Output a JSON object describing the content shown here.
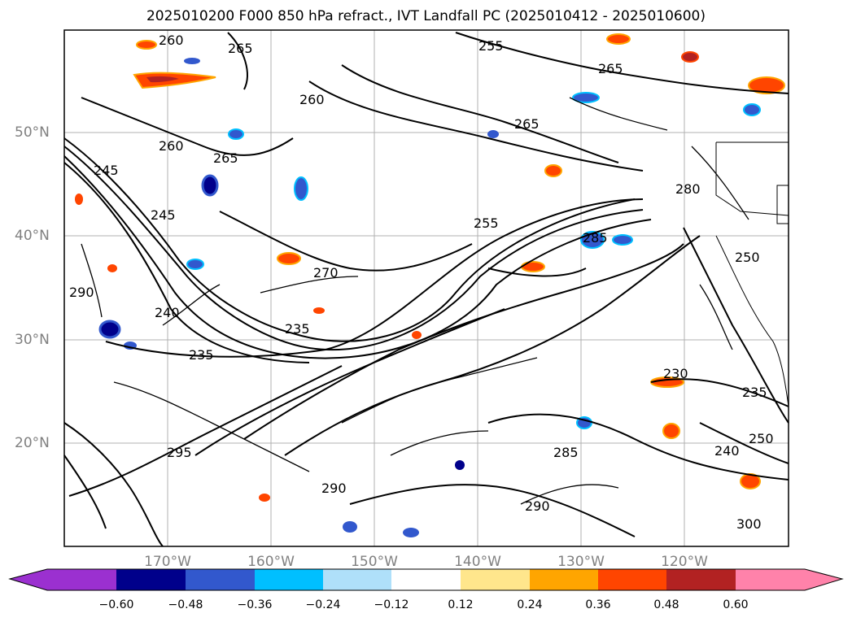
{
  "title": "2025010200 F000 850 hPa refract., IVT Landfall PC (2025010412 - 2025010600)",
  "lat_labels": [
    "50°N",
    "40°N",
    "30°N",
    "20°N"
  ],
  "lon_labels": [
    "170°W",
    "160°W",
    "150°W",
    "140°W",
    "130°W",
    "120°W"
  ],
  "contour_labels": [
    "260",
    "265",
    "255",
    "265",
    "265",
    "260",
    "265",
    "260",
    "245",
    "245",
    "255",
    "270",
    "280",
    "285",
    "250",
    "290",
    "240",
    "235",
    "235",
    "230",
    "235",
    "240",
    "250",
    "290",
    "290",
    "285",
    "295",
    "300"
  ],
  "colorbar": {
    "tick_labels": [
      "−0.60",
      "−0.48",
      "−0.36",
      "−0.24",
      "−0.12",
      "0.12",
      "0.24",
      "0.36",
      "0.48",
      "0.60"
    ],
    "colors": [
      "#9b30d0",
      "#00008b",
      "#3258cd",
      "#00bfff",
      "#afe0fa",
      "#ffffff",
      "#ffe68c",
      "#ffa500",
      "#ff4500",
      "#b22222",
      "#ff82aa"
    ]
  }
}
